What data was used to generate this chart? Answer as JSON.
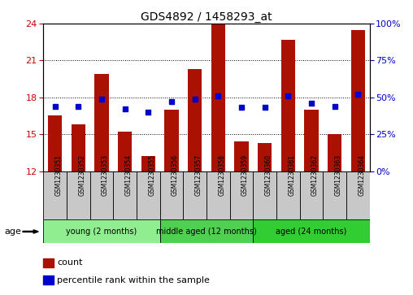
{
  "title": "GDS4892 / 1458293_at",
  "samples": [
    "GSM1230351",
    "GSM1230352",
    "GSM1230353",
    "GSM1230354",
    "GSM1230355",
    "GSM1230356",
    "GSM1230357",
    "GSM1230358",
    "GSM1230359",
    "GSM1230360",
    "GSM1230361",
    "GSM1230362",
    "GSM1230363",
    "GSM1230364"
  ],
  "counts": [
    16.5,
    15.8,
    19.9,
    15.2,
    13.2,
    17.0,
    20.3,
    24.0,
    14.4,
    14.3,
    22.7,
    17.0,
    15.0,
    23.5
  ],
  "percentiles": [
    44,
    44,
    49,
    42,
    40,
    47,
    49,
    51,
    43,
    43,
    51,
    46,
    44,
    52
  ],
  "y_min": 12,
  "y_max": 24,
  "y_ticks": [
    12,
    15,
    18,
    21,
    24
  ],
  "y2_ticks": [
    0,
    25,
    50,
    75,
    100
  ],
  "groups": [
    {
      "label": "young (2 months)",
      "start": 0,
      "end": 5,
      "color": "#90EE90"
    },
    {
      "label": "middle aged (12 months)",
      "start": 5,
      "end": 9,
      "color": "#50D050"
    },
    {
      "label": "aged (24 months)",
      "start": 9,
      "end": 14,
      "color": "#32CD32"
    }
  ],
  "bar_color": "#AA1100",
  "dot_color": "#0000CC",
  "bg_color": "#FFFFFF",
  "sample_box_color": "#C8C8C8",
  "bar_width": 0.6,
  "age_label": "age"
}
